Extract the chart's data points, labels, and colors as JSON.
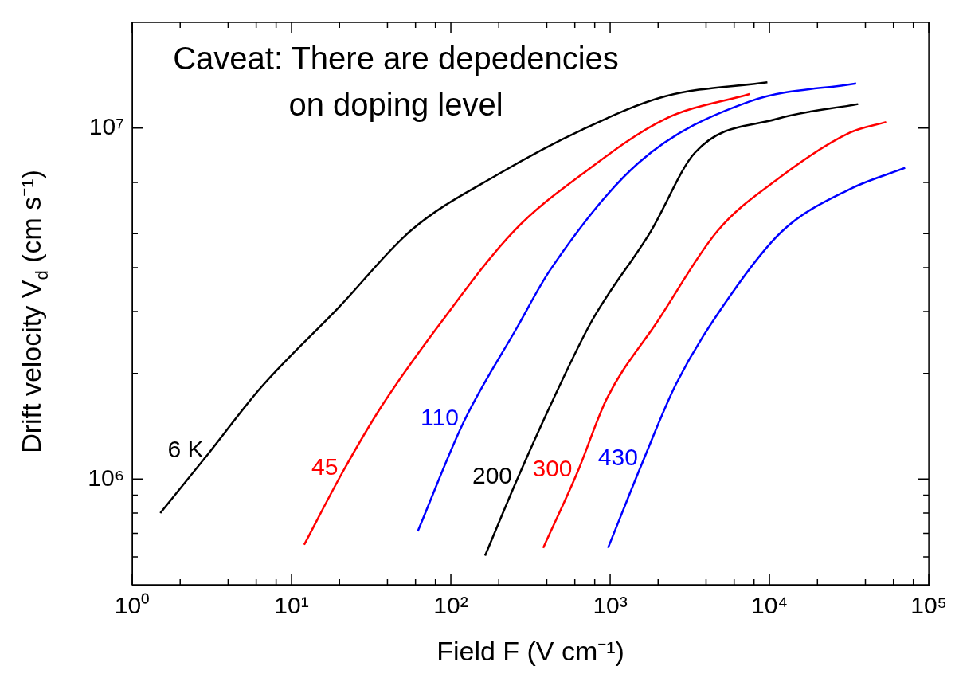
{
  "chart_data": {
    "type": "line",
    "xlabel": "Field F (V cm⁻¹)",
    "ylabel": "Drift velocity V$_{d}$ (cm s⁻¹)",
    "log": "xy",
    "marker": "none",
    "xlim": [
      1,
      100000
    ],
    "ylim": [
      500000,
      20000000
    ],
    "xticks": [
      {
        "value": 1,
        "label": "10⁰"
      },
      {
        "value": 2,
        "label": null
      },
      {
        "value": 4,
        "label": null
      },
      {
        "value": 6,
        "label": null
      },
      {
        "value": 8,
        "label": null
      },
      {
        "value": 10,
        "label": "10¹"
      },
      {
        "value": 20,
        "label": null
      },
      {
        "value": 40,
        "label": null
      },
      {
        "value": 60,
        "label": null
      },
      {
        "value": 80,
        "label": null
      },
      {
        "value": 100,
        "label": "10²"
      },
      {
        "value": 200,
        "label": null
      },
      {
        "value": 400,
        "label": null
      },
      {
        "value": 600,
        "label": null
      },
      {
        "value": 800,
        "label": null
      },
      {
        "value": 1000,
        "label": "10³"
      },
      {
        "value": 2000,
        "label": null
      },
      {
        "value": 4000,
        "label": null
      },
      {
        "value": 6000,
        "label": null
      },
      {
        "value": 8000,
        "label": null
      },
      {
        "value": 10000,
        "label": "10⁴"
      },
      {
        "value": 20000,
        "label": null
      },
      {
        "value": 40000,
        "label": null
      },
      {
        "value": 60000,
        "label": null
      },
      {
        "value": 80000,
        "label": null
      },
      {
        "value": 100000,
        "label": "10⁵"
      }
    ],
    "yticks": [
      {
        "value": 600000,
        "label": null
      },
      {
        "value": 700000,
        "label": null
      },
      {
        "value": 800000,
        "label": null
      },
      {
        "value": 900000,
        "label": null
      },
      {
        "value": 1000000,
        "label": "10⁶"
      },
      {
        "value": 2000000,
        "label": null
      },
      {
        "value": 3000000,
        "label": null
      },
      {
        "value": 4000000,
        "label": null
      },
      {
        "value": 5000000,
        "label": null
      },
      {
        "value": 7000000,
        "label": null
      },
      {
        "value": 10000000,
        "label": "10⁷"
      }
    ],
    "annotations": [
      "Caveat: There are depedencies\non doping level"
    ],
    "series": [
      {
        "name": "6 K",
        "color": "#000000",
        "x": [
          1.5,
          3,
          6.4,
          20,
          56,
          200,
          670,
          2200,
          9700
        ],
        "values": [
          800000,
          1180000,
          1820000,
          3100000,
          5100000,
          7400000,
          9900000,
          12300000,
          13500000
        ]
      },
      {
        "name": "45",
        "color": "#ff0000",
        "x": [
          12,
          21,
          37,
          88,
          250,
          670,
          2200,
          7500
        ],
        "values": [
          650000,
          1050000,
          1620000,
          2820000,
          5100000,
          7400000,
          10600000,
          12500000
        ]
      },
      {
        "name": "110",
        "color": "#0000ff",
        "x": [
          62,
          120,
          260,
          420,
          1500,
          7500,
          35000
        ],
        "values": [
          710000,
          1450000,
          2700000,
          3940000,
          7940000,
          11900000,
          13400000
        ]
      },
      {
        "name": "200",
        "color": "#000000",
        "x": [
          164,
          260,
          440,
          770,
          1800,
          3400,
          11000,
          36000
        ],
        "values": [
          605000,
          995000,
          1690000,
          2830000,
          5080000,
          8500000,
          10600000,
          11700000
        ]
      },
      {
        "name": "300",
        "color": "#ff0000",
        "x": [
          380,
          620,
          950,
          2000,
          4700,
          11000,
          32000,
          54000
        ],
        "values": [
          637000,
          1040000,
          1690000,
          2830000,
          5080000,
          7100000,
          9700000,
          10400000
        ]
      },
      {
        "name": "430",
        "color": "#0000ff",
        "x": [
          970,
          1600,
          2600,
          5700,
          12000,
          32000,
          71000
        ],
        "values": [
          637000,
          1120000,
          1870000,
          3340000,
          5080000,
          6700000,
          7700000
        ]
      }
    ]
  }
}
